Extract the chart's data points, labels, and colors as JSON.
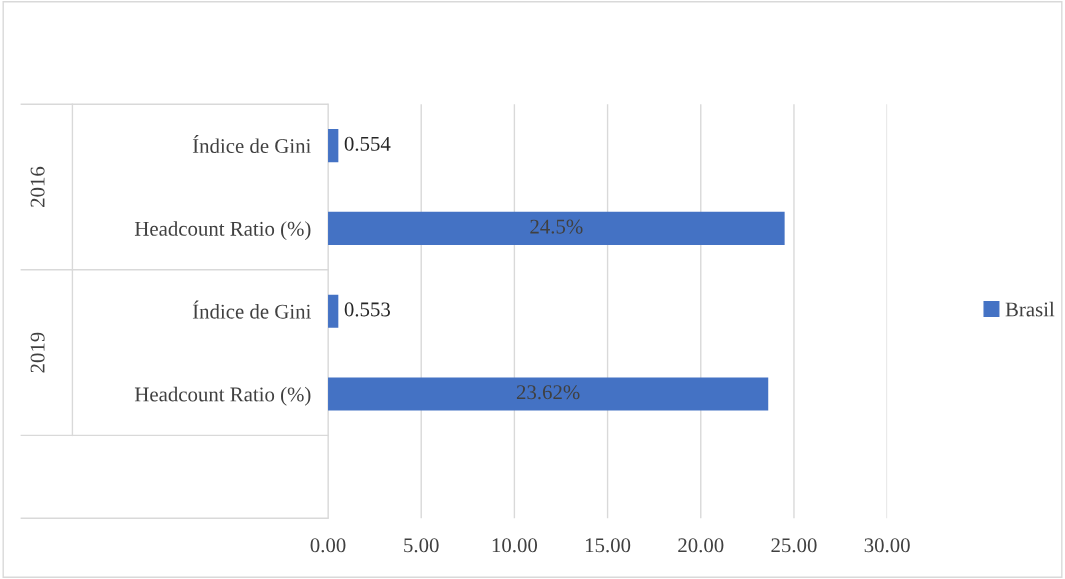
{
  "chart_data": {
    "type": "bar",
    "orientation": "horizontal",
    "categories": [
      "Índice de Gini",
      "Headcount Ratio (%)",
      "Índice de Gini",
      "Headcount Ratio (%)",
      null
    ],
    "series": [
      {
        "name": "Brasil",
        "color": "#4472c4",
        "values": [
          0.554,
          24.5,
          0.553,
          23.62,
          null
        ],
        "value_labels": [
          "0.554",
          "24.5%",
          "0.553",
          "23.62%",
          null
        ]
      }
    ],
    "annotations": [
      "2016",
      "2019"
    ],
    "xlim": [
      0,
      30
    ],
    "xticks": [
      {
        "value": 0,
        "label": "0.00"
      },
      {
        "value": 5,
        "label": "5.00"
      },
      {
        "value": 10,
        "label": "10.00"
      },
      {
        "value": 15,
        "label": "15.00"
      },
      {
        "value": 20,
        "label": "20.00"
      },
      {
        "value": 25,
        "label": "25.00"
      },
      {
        "value": 30,
        "label": "30.00"
      }
    ],
    "grid": "x",
    "legend": "right"
  }
}
